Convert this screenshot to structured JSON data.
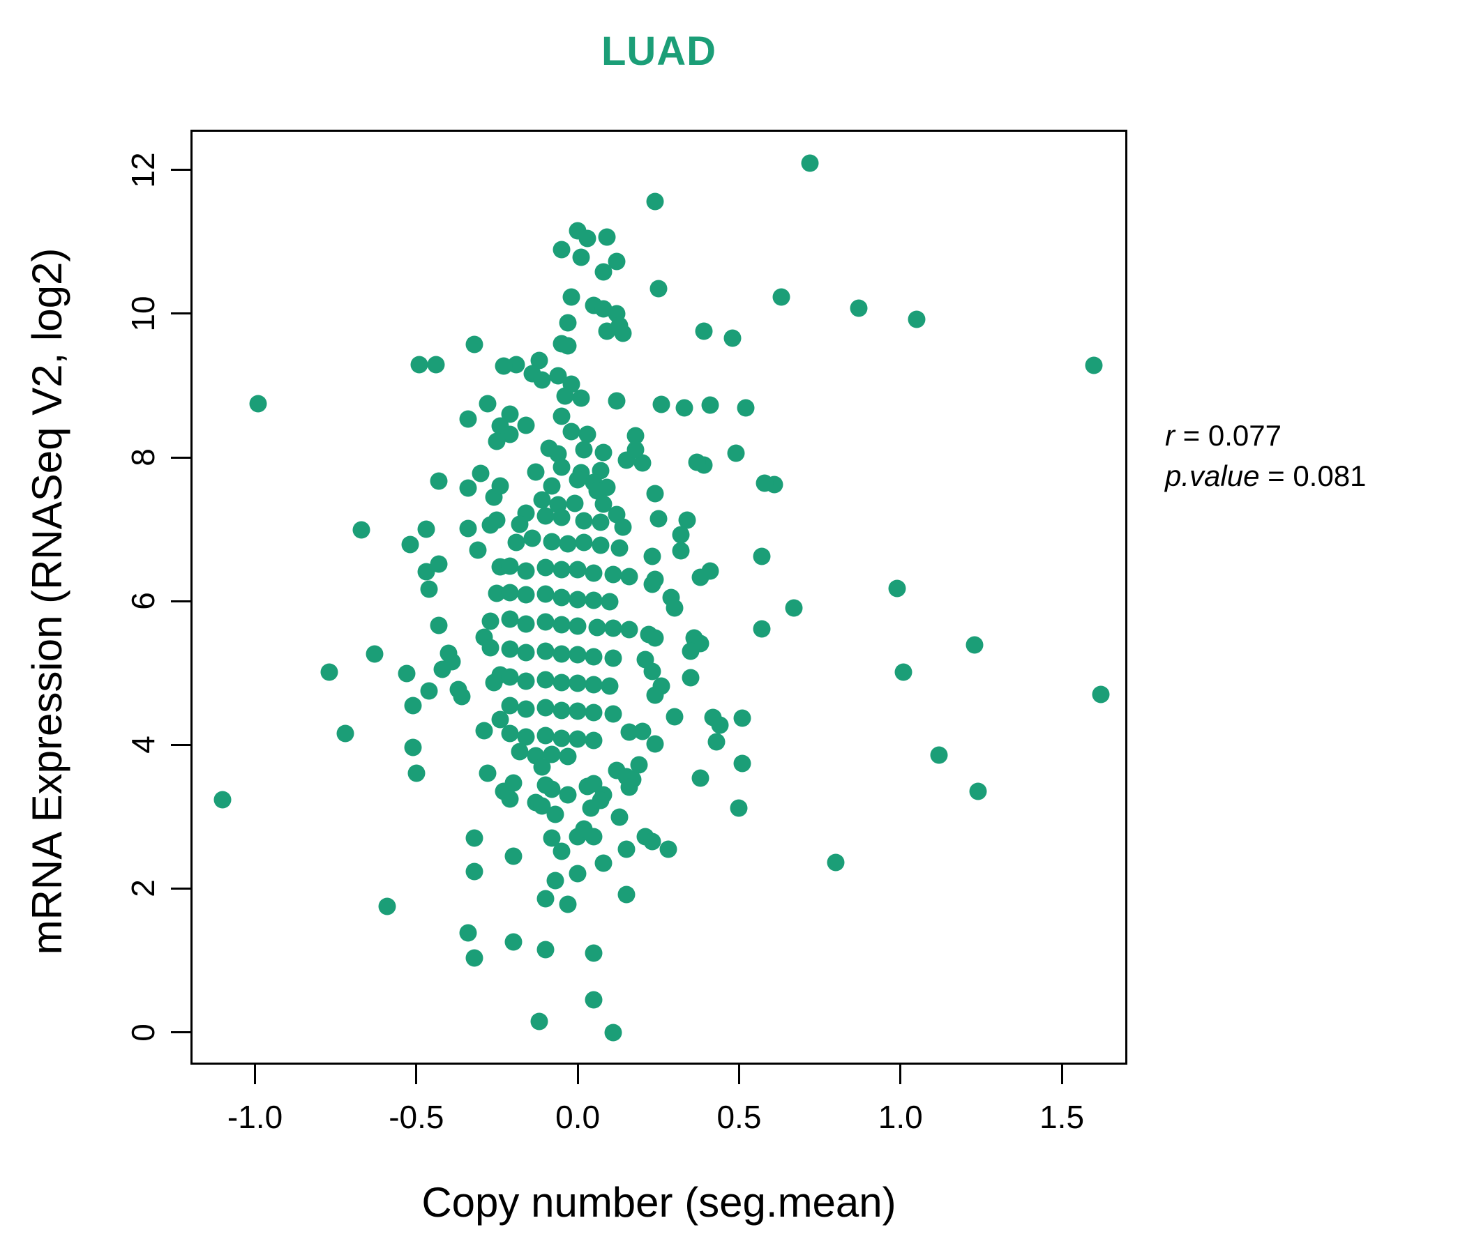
{
  "title": "LUAD",
  "annotation": {
    "r_label": "r",
    "r_eq": " = ",
    "r_value": "0.077",
    "p_label": "p.value",
    "p_eq": " = ",
    "p_value": "0.081"
  },
  "chart_data": {
    "type": "scatter",
    "title": "LUAD",
    "xlabel": "Copy number (seg.mean)",
    "ylabel": "mRNA Expression (RNASeq V2, log2)",
    "xlim": [
      -1.2,
      1.703
    ],
    "ylim": [
      -0.45,
      12.56
    ],
    "x_ticks": [
      {
        "pos": -1.0,
        "label": "-1.0"
      },
      {
        "pos": -0.5,
        "label": "-0.5"
      },
      {
        "pos": 0.0,
        "label": "0.0"
      },
      {
        "pos": 0.5,
        "label": "0.5"
      },
      {
        "pos": 1.0,
        "label": "1.0"
      },
      {
        "pos": 1.5,
        "label": "1.5"
      }
    ],
    "y_ticks": [
      {
        "pos": 0,
        "label": "0"
      },
      {
        "pos": 2,
        "label": "2"
      },
      {
        "pos": 4,
        "label": "4"
      },
      {
        "pos": 6,
        "label": "6"
      },
      {
        "pos": 8,
        "label": "8"
      },
      {
        "pos": 10,
        "label": "10"
      },
      {
        "pos": 12,
        "label": "12"
      }
    ],
    "grid": false,
    "legend": "none",
    "point_color": "#1b9e77",
    "title_color": "#1b9e77",
    "r": 0.077,
    "p_value": 0.081,
    "points": [
      [
        0.72,
        12.09
      ],
      [
        0.24,
        11.56
      ],
      [
        0.0,
        11.15
      ],
      [
        0.03,
        11.05
      ],
      [
        0.09,
        11.07
      ],
      [
        -0.05,
        10.89
      ],
      [
        0.01,
        10.78
      ],
      [
        0.12,
        10.73
      ],
      [
        0.08,
        10.58
      ],
      [
        0.25,
        10.35
      ],
      [
        0.63,
        10.23
      ],
      [
        -0.02,
        10.23
      ],
      [
        0.05,
        10.12
      ],
      [
        0.08,
        10.07
      ],
      [
        0.12,
        10.0
      ],
      [
        -0.03,
        9.87
      ],
      [
        0.39,
        9.76
      ],
      [
        0.48,
        9.66
      ],
      [
        0.13,
        9.83
      ],
      [
        0.09,
        9.76
      ],
      [
        0.14,
        9.73
      ],
      [
        -0.05,
        9.58
      ],
      [
        -0.03,
        9.55
      ],
      [
        -0.12,
        9.35
      ],
      [
        -0.19,
        9.29
      ],
      [
        -0.14,
        9.16
      ],
      [
        -0.11,
        9.08
      ],
      [
        -0.06,
        9.14
      ],
      [
        -0.02,
        9.02
      ],
      [
        0.01,
        8.82
      ],
      [
        0.12,
        8.79
      ],
      [
        0.26,
        8.74
      ],
      [
        0.33,
        8.69
      ],
      [
        0.41,
        8.73
      ],
      [
        0.52,
        8.69
      ],
      [
        -0.04,
        8.85
      ],
      [
        -0.21,
        8.6
      ],
      [
        -0.16,
        8.45
      ],
      [
        -0.05,
        8.57
      ],
      [
        -0.02,
        8.36
      ],
      [
        0.03,
        8.32
      ],
      [
        -0.21,
        8.32
      ],
      [
        0.18,
        8.3
      ],
      [
        0.87,
        10.08
      ],
      [
        1.05,
        9.92
      ],
      [
        1.6,
        9.28
      ],
      [
        -0.32,
        9.57
      ],
      [
        -0.49,
        9.29
      ],
      [
        -0.44,
        9.29
      ],
      [
        -0.99,
        8.75
      ],
      [
        -0.28,
        8.75
      ],
      [
        -0.23,
        9.27
      ],
      [
        -0.34,
        8.53
      ],
      [
        -0.24,
        8.44
      ],
      [
        -0.25,
        8.22
      ],
      [
        -0.43,
        7.67
      ],
      [
        -0.34,
        7.57
      ],
      [
        -0.3,
        7.78
      ],
      [
        -0.26,
        7.45
      ],
      [
        -0.24,
        7.6
      ],
      [
        -0.67,
        6.99
      ],
      [
        -0.47,
        7.0
      ],
      [
        -0.52,
        6.79
      ],
      [
        -0.34,
        7.01
      ],
      [
        -0.27,
        7.06
      ],
      [
        -0.25,
        7.13
      ],
      [
        -0.31,
        6.71
      ],
      [
        -0.43,
        6.52
      ],
      [
        -0.47,
        6.41
      ],
      [
        -0.46,
        6.17
      ],
      [
        -0.24,
        6.48
      ],
      [
        -0.25,
        6.11
      ],
      [
        -0.43,
        5.66
      ],
      [
        -0.27,
        5.72
      ],
      [
        -0.29,
        5.5
      ],
      [
        -0.27,
        5.35
      ],
      [
        -0.63,
        5.26
      ],
      [
        -0.4,
        5.27
      ],
      [
        -0.39,
        5.16
      ],
      [
        -0.42,
        5.05
      ],
      [
        -0.77,
        5.01
      ],
      [
        -0.53,
        4.99
      ],
      [
        -0.37,
        4.77
      ],
      [
        -0.36,
        4.67
      ],
      [
        -0.46,
        4.75
      ],
      [
        -0.51,
        4.55
      ],
      [
        -0.26,
        4.87
      ],
      [
        -0.24,
        4.97
      ],
      [
        -0.72,
        4.16
      ],
      [
        -0.51,
        3.96
      ],
      [
        -0.29,
        4.2
      ],
      [
        -0.24,
        4.35
      ],
      [
        0.49,
        8.06
      ],
      [
        0.39,
        7.89
      ],
      [
        0.37,
        7.93
      ],
      [
        0.61,
        7.62
      ],
      [
        0.58,
        7.64
      ],
      [
        0.24,
        7.5
      ],
      [
        0.25,
        7.15
      ],
      [
        0.34,
        7.13
      ],
      [
        0.32,
        6.92
      ],
      [
        0.32,
        6.7
      ],
      [
        0.23,
        6.62
      ],
      [
        0.24,
        6.3
      ],
      [
        0.23,
        6.23
      ],
      [
        0.41,
        6.42
      ],
      [
        0.38,
        6.33
      ],
      [
        0.57,
        6.62
      ],
      [
        0.29,
        6.05
      ],
      [
        0.3,
        5.9
      ],
      [
        0.67,
        5.9
      ],
      [
        0.57,
        5.61
      ],
      [
        0.22,
        5.54
      ],
      [
        0.24,
        5.49
      ],
      [
        0.36,
        5.49
      ],
      [
        0.38,
        5.41
      ],
      [
        0.35,
        5.3
      ],
      [
        0.21,
        5.19
      ],
      [
        0.23,
        5.02
      ],
      [
        0.35,
        4.93
      ],
      [
        0.26,
        4.82
      ],
      [
        0.24,
        4.69
      ],
      [
        0.3,
        4.39
      ],
      [
        0.42,
        4.38
      ],
      [
        0.44,
        4.27
      ],
      [
        0.51,
        4.37
      ],
      [
        0.2,
        4.19
      ],
      [
        0.24,
        4.01
      ],
      [
        0.43,
        4.04
      ],
      [
        0.15,
        7.96
      ],
      [
        0.2,
        7.92
      ],
      [
        0.18,
        8.11
      ],
      [
        0.12,
        7.2
      ],
      [
        0.14,
        7.03
      ],
      [
        -0.09,
        8.13
      ],
      [
        -0.06,
        8.05
      ],
      [
        0.02,
        8.11
      ],
      [
        0.08,
        8.07
      ],
      [
        -0.05,
        7.86
      ],
      [
        -0.13,
        7.8
      ],
      [
        0.01,
        7.79
      ],
      [
        0.07,
        7.82
      ],
      [
        0.09,
        7.58
      ],
      [
        0.05,
        7.65
      ],
      [
        0.0,
        7.69
      ],
      [
        -0.08,
        7.6
      ],
      [
        -0.11,
        7.41
      ],
      [
        -0.06,
        7.34
      ],
      [
        -0.01,
        7.36
      ],
      [
        0.06,
        7.53
      ],
      [
        0.08,
        7.35
      ],
      [
        -0.16,
        7.22
      ],
      [
        -0.18,
        7.07
      ],
      [
        -0.1,
        7.19
      ],
      [
        -0.05,
        7.17
      ],
      [
        0.02,
        7.12
      ],
      [
        0.07,
        7.1
      ],
      [
        -0.19,
        6.82
      ],
      [
        -0.14,
        6.87
      ],
      [
        -0.08,
        6.83
      ],
      [
        -0.03,
        6.8
      ],
      [
        0.02,
        6.82
      ],
      [
        0.07,
        6.78
      ],
      [
        0.13,
        6.74
      ],
      [
        -0.21,
        6.49
      ],
      [
        -0.16,
        6.42
      ],
      [
        -0.1,
        6.47
      ],
      [
        -0.05,
        6.44
      ],
      [
        0.0,
        6.44
      ],
      [
        0.05,
        6.39
      ],
      [
        0.11,
        6.37
      ],
      [
        0.16,
        6.34
      ],
      [
        -0.21,
        6.12
      ],
      [
        -0.16,
        6.09
      ],
      [
        -0.1,
        6.1
      ],
      [
        -0.05,
        6.05
      ],
      [
        0.0,
        6.02
      ],
      [
        0.05,
        6.01
      ],
      [
        0.1,
        5.99
      ],
      [
        -0.21,
        5.75
      ],
      [
        -0.16,
        5.68
      ],
      [
        -0.1,
        5.71
      ],
      [
        -0.05,
        5.67
      ],
      [
        0.0,
        5.65
      ],
      [
        0.06,
        5.63
      ],
      [
        0.11,
        5.62
      ],
      [
        0.16,
        5.6
      ],
      [
        -0.21,
        5.33
      ],
      [
        -0.16,
        5.28
      ],
      [
        -0.1,
        5.3
      ],
      [
        -0.05,
        5.26
      ],
      [
        0.0,
        5.25
      ],
      [
        0.05,
        5.23
      ],
      [
        0.11,
        5.21
      ],
      [
        -0.21,
        4.94
      ],
      [
        -0.16,
        4.89
      ],
      [
        -0.1,
        4.91
      ],
      [
        -0.05,
        4.87
      ],
      [
        0.0,
        4.86
      ],
      [
        0.05,
        4.84
      ],
      [
        0.1,
        4.82
      ],
      [
        -0.21,
        4.55
      ],
      [
        -0.16,
        4.5
      ],
      [
        -0.1,
        4.52
      ],
      [
        -0.05,
        4.48
      ],
      [
        0.0,
        4.47
      ],
      [
        0.05,
        4.45
      ],
      [
        0.11,
        4.43
      ],
      [
        -0.21,
        4.16
      ],
      [
        -0.16,
        4.11
      ],
      [
        -0.1,
        4.13
      ],
      [
        -0.05,
        4.09
      ],
      [
        0.0,
        4.08
      ],
      [
        0.05,
        4.06
      ],
      [
        0.16,
        4.18
      ],
      [
        -0.18,
        3.91
      ],
      [
        -0.13,
        3.85
      ],
      [
        -0.08,
        3.87
      ],
      [
        -0.03,
        3.84
      ],
      [
        0.99,
        6.18
      ],
      [
        1.23,
        5.39
      ],
      [
        1.01,
        5.01
      ],
      [
        1.62,
        4.7
      ],
      [
        1.12,
        3.86
      ],
      [
        -1.1,
        3.24
      ],
      [
        -0.5,
        3.61
      ],
      [
        -0.28,
        3.61
      ],
      [
        -0.23,
        3.35
      ],
      [
        -0.32,
        2.7
      ],
      [
        -0.32,
        2.24
      ],
      [
        -0.59,
        1.75
      ],
      [
        -0.34,
        1.38
      ],
      [
        -0.32,
        1.03
      ],
      [
        -0.11,
        3.69
      ],
      [
        -0.2,
        3.47
      ],
      [
        -0.21,
        3.25
      ],
      [
        -0.1,
        3.44
      ],
      [
        -0.08,
        3.38
      ],
      [
        -0.13,
        3.2
      ],
      [
        -0.11,
        3.15
      ],
      [
        -0.03,
        3.3
      ],
      [
        0.03,
        3.42
      ],
      [
        0.05,
        3.46
      ],
      [
        0.08,
        3.3
      ],
      [
        0.12,
        3.64
      ],
      [
        0.15,
        3.56
      ],
      [
        0.17,
        3.52
      ],
      [
        0.19,
        3.72
      ],
      [
        0.16,
        3.41
      ],
      [
        0.04,
        3.12
      ],
      [
        0.07,
        3.23
      ],
      [
        0.38,
        3.54
      ],
      [
        0.51,
        3.74
      ],
      [
        0.5,
        3.12
      ],
      [
        -0.07,
        3.03
      ],
      [
        0.13,
        2.99
      ],
      [
        -0.08,
        2.7
      ],
      [
        -0.05,
        2.52
      ],
      [
        0.0,
        2.72
      ],
      [
        0.02,
        2.83
      ],
      [
        0.05,
        2.72
      ],
      [
        -0.2,
        2.45
      ],
      [
        0.15,
        2.55
      ],
      [
        0.21,
        2.72
      ],
      [
        0.23,
        2.65
      ],
      [
        0.28,
        2.55
      ],
      [
        0.08,
        2.35
      ],
      [
        0.0,
        2.21
      ],
      [
        -0.07,
        2.11
      ],
      [
        -0.1,
        1.86
      ],
      [
        -0.03,
        1.78
      ],
      [
        0.15,
        1.92
      ],
      [
        -0.2,
        1.26
      ],
      [
        -0.1,
        1.15
      ],
      [
        0.05,
        1.1
      ],
      [
        0.05,
        0.45
      ],
      [
        -0.12,
        0.15
      ],
      [
        0.11,
        0.0
      ],
      [
        1.24,
        3.35
      ],
      [
        0.8,
        2.36
      ]
    ]
  }
}
